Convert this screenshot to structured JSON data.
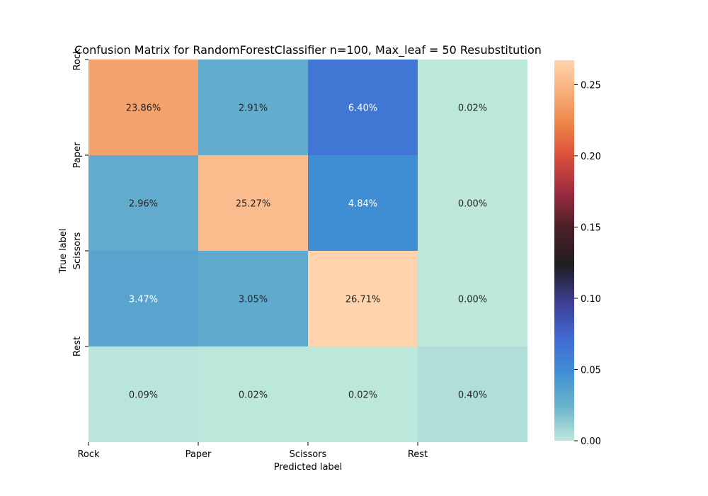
{
  "chart_data": {
    "type": "heatmap",
    "title": "Confusion Matrix for RandomForestClassifier n=100, Max_leaf = 50 Resubstitution",
    "xlabel": "Predicted label",
    "ylabel": "True label",
    "x_categories": [
      "Rock",
      "Paper",
      "Scissors",
      "Rest"
    ],
    "y_categories": [
      "Rock",
      "Paper",
      "Scissors",
      "Rest"
    ],
    "cell_labels": [
      [
        "23.86%",
        "2.91%",
        "6.40%",
        "0.02%"
      ],
      [
        "2.96%",
        "25.27%",
        "4.84%",
        "0.00%"
      ],
      [
        "3.47%",
        "3.05%",
        "26.71%",
        "0.00%"
      ],
      [
        "0.09%",
        "0.02%",
        "0.02%",
        "0.40%"
      ]
    ],
    "values": [
      [
        0.2386,
        0.0291,
        0.064,
        0.0002
      ],
      [
        0.0296,
        0.2527,
        0.0484,
        0.0
      ],
      [
        0.0347,
        0.0305,
        0.2671,
        0.0
      ],
      [
        0.0009,
        0.0002,
        0.0002,
        0.004
      ]
    ],
    "colorbar": {
      "range": [
        0,
        0.2671
      ],
      "ticks": [
        "0.00",
        "0.05",
        "0.10",
        "0.15",
        "0.20",
        "0.25"
      ],
      "tick_values": [
        0,
        0.05,
        0.1,
        0.15,
        0.2,
        0.25
      ],
      "colormap": "icefire"
    },
    "grid": false,
    "legend": "colorbar-right"
  }
}
